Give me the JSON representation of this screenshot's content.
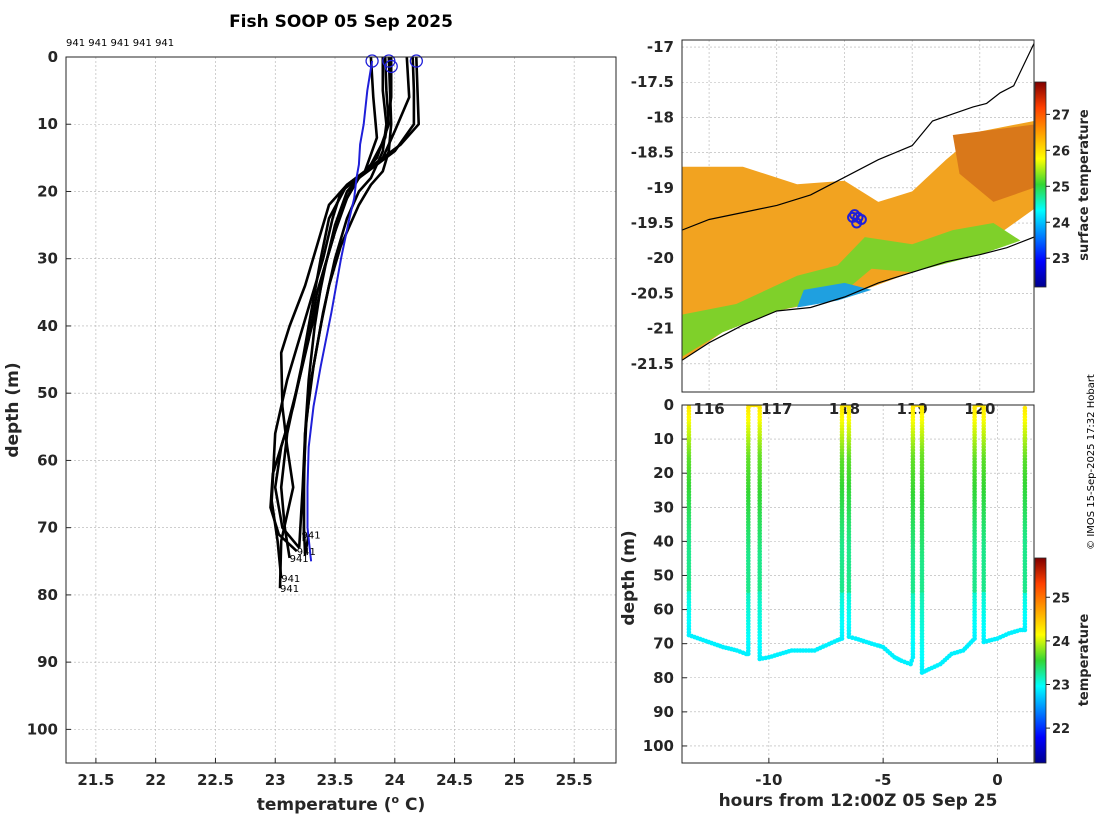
{
  "chart_data": [
    {
      "type": "line",
      "name": "profile-plot",
      "title": "Fish SOOP 05 Sep 2025",
      "xlabel": "temperature (",
      "xlabel_sup": "o",
      "xlabel_end": " C)",
      "ylabel": "depth (m)",
      "xlim": [
        21.25,
        25.85
      ],
      "ylim": [
        105,
        0
      ],
      "xticks": [
        21.5,
        22,
        22.5,
        23,
        23.5,
        24,
        24.5,
        25,
        25.5
      ],
      "yticks": [
        0,
        10,
        20,
        30,
        40,
        50,
        60,
        70,
        80,
        90,
        100
      ],
      "top_label": "941 941 941 941 941",
      "end_labels": [
        {
          "text": "941",
          "x": 23.22,
          "y": 71
        },
        {
          "text": "941",
          "x": 23.18,
          "y": 73.5
        },
        {
          "text": "941",
          "x": 23.12,
          "y": 74.5
        },
        {
          "text": "941",
          "x": 23.05,
          "y": 77.5
        },
        {
          "text": "941",
          "x": 23.04,
          "y": 79
        }
      ],
      "surface_markers": [
        {
          "x": 23.81,
          "y": 0.6
        },
        {
          "x": 23.95,
          "y": 0.6
        },
        {
          "x": 23.97,
          "y": 1.4
        },
        {
          "x": 24.18,
          "y": 0.6
        }
      ],
      "series": [
        {
          "name": "profile-1",
          "color": "#000000",
          "x": [
            23.9,
            23.9,
            23.93,
            23.9,
            23.85,
            23.8,
            23.7,
            23.6,
            23.5,
            23.4,
            23.32,
            23.26,
            23.24,
            23.24,
            23.25,
            23.28
          ],
          "y": [
            0,
            5,
            10,
            14,
            16,
            18,
            20,
            24,
            30,
            38,
            46,
            54,
            62,
            70,
            74,
            71
          ]
        },
        {
          "name": "profile-2",
          "color": "#000000",
          "x": [
            23.95,
            23.96,
            23.97,
            23.95,
            23.9,
            23.8,
            23.7,
            23.55,
            23.45,
            23.38,
            23.3,
            23.25,
            23.24,
            23.24
          ],
          "y": [
            0,
            5,
            10,
            14,
            17,
            19,
            22,
            28,
            34,
            40,
            48,
            56,
            64,
            72
          ]
        },
        {
          "name": "profile-3",
          "color": "#000000",
          "x": [
            24.15,
            24.16,
            24.16,
            24.0,
            23.85,
            23.7,
            23.6,
            23.5,
            23.4,
            23.33,
            23.28,
            23.25,
            23.23,
            23.2
          ],
          "y": [
            0,
            5,
            10,
            14,
            16,
            18,
            21,
            26,
            32,
            40,
            48,
            56,
            64,
            73
          ]
        },
        {
          "name": "profile-4",
          "color": "#000000",
          "x": [
            24.18,
            24.19,
            24.2,
            24.05,
            23.9,
            23.75,
            23.6,
            23.45,
            23.38,
            23.3,
            23.22,
            23.1,
            23.05,
            23.08,
            23.12
          ],
          "y": [
            0,
            5,
            10,
            13,
            15,
            17,
            19,
            24,
            30,
            38,
            46,
            56,
            64,
            70,
            74.5
          ]
        },
        {
          "name": "profile-5",
          "color": "#000000",
          "x": [
            23.92,
            23.93,
            23.95,
            23.85,
            23.7,
            23.55,
            23.48,
            23.4,
            23.3,
            23.2,
            23.1,
            23.0,
            22.97,
            23.02,
            23.05
          ],
          "y": [
            0,
            5,
            10,
            15,
            18,
            20,
            24,
            30,
            36,
            42,
            48,
            56,
            66,
            72,
            77.5
          ]
        },
        {
          "name": "profile-6",
          "color": "#000000",
          "x": [
            23.8,
            23.82,
            23.85,
            23.75,
            23.6,
            23.45,
            23.35,
            23.25,
            23.12,
            23.05,
            23.06,
            23.1,
            23.15,
            23.05,
            23.04
          ],
          "y": [
            0,
            6,
            12,
            17,
            19,
            22,
            28,
            34,
            40,
            44,
            52,
            58,
            64,
            72,
            79
          ]
        },
        {
          "name": "profile-7",
          "color": "#000000",
          "x": [
            23.97,
            23.97,
            23.92,
            23.8,
            23.65,
            23.55,
            23.45,
            23.35,
            23.28,
            23.2,
            23.1,
            22.98,
            22.96,
            23.03,
            23.18
          ],
          "y": [
            0,
            6,
            12,
            16,
            19,
            23,
            29,
            35,
            42,
            48,
            55,
            62,
            67,
            71,
            73.5
          ]
        },
        {
          "name": "profile-8",
          "color": "#000000",
          "x": [
            24.1,
            24.12,
            24.0,
            23.9,
            23.75,
            23.6,
            23.5,
            23.42,
            23.35,
            23.25,
            23.15,
            23.05,
            23.0,
            23.06,
            23.2
          ],
          "y": [
            0,
            6,
            11,
            15,
            17,
            20,
            25,
            31,
            37,
            44,
            52,
            58,
            64,
            70,
            73
          ]
        },
        {
          "name": "profile-cast",
          "color": "#1f1fd9",
          "x": [
            23.81,
            23.77,
            23.74,
            23.71,
            23.7,
            23.68,
            23.66,
            23.62,
            23.55,
            23.47,
            23.38,
            23.32,
            23.28,
            23.27,
            23.27,
            23.3
          ],
          "y": [
            0.6,
            5,
            10,
            13,
            16,
            18,
            21,
            24,
            30,
            38,
            46,
            52,
            58,
            64,
            70,
            75
          ]
        }
      ]
    },
    {
      "type": "heatmap",
      "name": "surface-map",
      "xlim": [
        115.6,
        120.8
      ],
      "ylim": [
        -21.9,
        -16.9
      ],
      "xticks": [
        116,
        117,
        118,
        119,
        120
      ],
      "xtick_labels": [
        "116",
        "117",
        "118",
        "119",
        "120"
      ],
      "yticks": [
        -17,
        -17.5,
        -18,
        -18.5,
        -19,
        -19.5,
        -20,
        -20.5,
        -21,
        -21.5
      ],
      "colorbar": {
        "label": "surface temperature",
        "range": [
          22.2,
          27.9
        ],
        "ticks": [
          23,
          24,
          25,
          26,
          27
        ]
      },
      "coastline_north": {
        "lon": [
          115.6,
          116.0,
          116.5,
          117.0,
          117.5,
          118.0,
          118.5,
          119.0,
          119.3,
          119.6,
          119.9,
          120.1,
          120.3,
          120.5,
          120.7,
          120.8
        ],
        "lat": [
          -19.6,
          -19.45,
          -19.35,
          -19.25,
          -19.1,
          -18.85,
          -18.6,
          -18.4,
          -18.05,
          -17.95,
          -17.85,
          -17.8,
          -17.65,
          -17.55,
          -17.15,
          -16.95
        ]
      },
      "coastline_south": {
        "lon": [
          115.6,
          116.0,
          116.5,
          117.0,
          117.5,
          118.0,
          118.5,
          119.0,
          119.5,
          120.0,
          120.4,
          120.8
        ],
        "lat": [
          -21.45,
          -21.2,
          -20.95,
          -20.75,
          -20.7,
          -20.55,
          -20.35,
          -20.2,
          -20.05,
          -19.95,
          -19.85,
          -19.7
        ]
      },
      "ship_markers": [
        {
          "lon": 118.15,
          "lat": -19.38
        },
        {
          "lon": 118.2,
          "lat": -19.42
        },
        {
          "lon": 118.25,
          "lat": -19.45
        },
        {
          "lon": 118.18,
          "lat": -19.5
        },
        {
          "lon": 118.12,
          "lat": -19.42
        }
      ]
    },
    {
      "type": "scatter",
      "name": "depth-time-plot",
      "xlabel": "hours from 12:00Z 05 Sep 25",
      "ylabel": "depth (m)",
      "xlim": [
        -13.8,
        1.6
      ],
      "ylim": [
        105,
        0
      ],
      "xticks": [
        -10,
        -5,
        0
      ],
      "yticks": [
        0,
        10,
        20,
        30,
        40,
        50,
        60,
        70,
        80,
        90,
        100
      ],
      "colorbar": {
        "label": "temperature",
        "range": [
          21.2,
          25.9
        ],
        "ticks": [
          22,
          23,
          24,
          25
        ]
      },
      "track": {
        "hours": [
          -13.5,
          -13.5,
          -12.0,
          -11.4,
          -11.0,
          -10.9,
          -10.9,
          -10.4,
          -10.4,
          -10.0,
          -9.0,
          -8.0,
          -7.0,
          -6.8,
          -6.8,
          -6.5,
          -6.5,
          -6.2,
          -5.5,
          -5.0,
          -4.5,
          -4.2,
          -3.8,
          -3.7,
          -3.7,
          -3.3,
          -3.3,
          -3.0,
          -2.5,
          -2.0,
          -1.5,
          -1.0,
          -1.0,
          -0.6,
          -0.6,
          0.0,
          0.5,
          1.0,
          1.2,
          1.2
        ],
        "depth": [
          0,
          67.5,
          71,
          72,
          73,
          73,
          0,
          0,
          74.5,
          74,
          72,
          72,
          69,
          68.5,
          0,
          0,
          68,
          68.5,
          70,
          71,
          74,
          75,
          76,
          74,
          0,
          0,
          78.5,
          77.5,
          76,
          73,
          72,
          68.5,
          0,
          0,
          69.5,
          68.5,
          67,
          66,
          66,
          0
        ],
        "temp": [
          23.9,
          22.9,
          22.9,
          22.9,
          22.9,
          22.9,
          23.9,
          23.9,
          22.9,
          22.9,
          22.9,
          22.9,
          22.9,
          22.9,
          23.9,
          23.9,
          22.9,
          22.9,
          22.9,
          22.9,
          22.9,
          22.9,
          22.9,
          22.9,
          23.9,
          23.9,
          22.9,
          22.9,
          22.9,
          22.9,
          22.9,
          22.9,
          23.9,
          23.9,
          22.9,
          22.9,
          22.9,
          22.9,
          22.9,
          23.9
        ]
      }
    }
  ],
  "footer": {
    "credit": "© IMOS 15-Sep-2025 17:32 Hobart"
  }
}
